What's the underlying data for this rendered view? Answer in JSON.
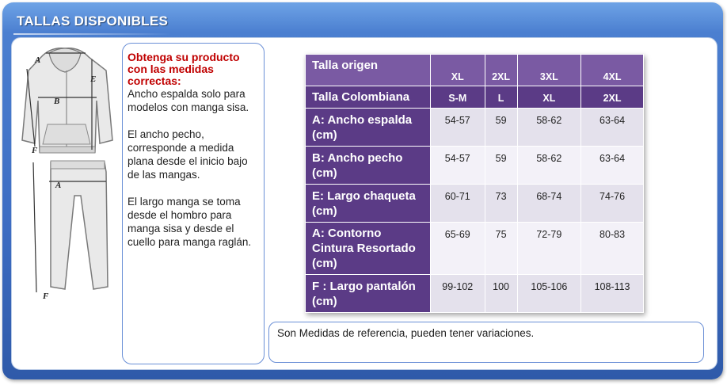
{
  "header": {
    "title": "TALLAS DISPONIBLES"
  },
  "illustration": {
    "labels": [
      "A",
      "B",
      "E",
      "F",
      "A",
      "F"
    ]
  },
  "info": {
    "heading": "Obtenga su producto con las medidas correctas:",
    "paragraphs": [
      "Ancho espalda solo para modelos con manga sisa.",
      "El ancho pecho, corresponde a medida plana  desde el inicio bajo de las mangas.",
      "El largo manga se toma desde el hombro para manga sisa y desde el cuello para manga raglán."
    ]
  },
  "table": {
    "rows": [
      {
        "label": "Talla origen",
        "values": [
          "XL",
          "2XL",
          "3XL",
          "4XL"
        ]
      },
      {
        "label": "Talla Colombiana",
        "values": [
          "S-M",
          "L",
          "XL",
          "2XL"
        ]
      },
      {
        "label": "A: Ancho espalda (cm)",
        "values": [
          "54-57",
          "59",
          "58-62",
          "63-64"
        ]
      },
      {
        "label": "B: Ancho pecho (cm)",
        "values": [
          "54-57",
          "59",
          "58-62",
          "63-64"
        ]
      },
      {
        "label": "E: Largo chaqueta (cm)",
        "values": [
          "60-71",
          "73",
          "68-74",
          "74-76"
        ]
      },
      {
        "label": "A: Contorno Cintura Resortado (cm)",
        "values": [
          "65-69",
          "75",
          "72-79",
          "80-83"
        ]
      },
      {
        "label": "F : Largo pantalón (cm)",
        "values": [
          "99-102",
          "100",
          "105-106",
          "108-113"
        ]
      }
    ]
  },
  "note": {
    "text": "Son Medidas de referencia, pueden tener variaciones."
  }
}
